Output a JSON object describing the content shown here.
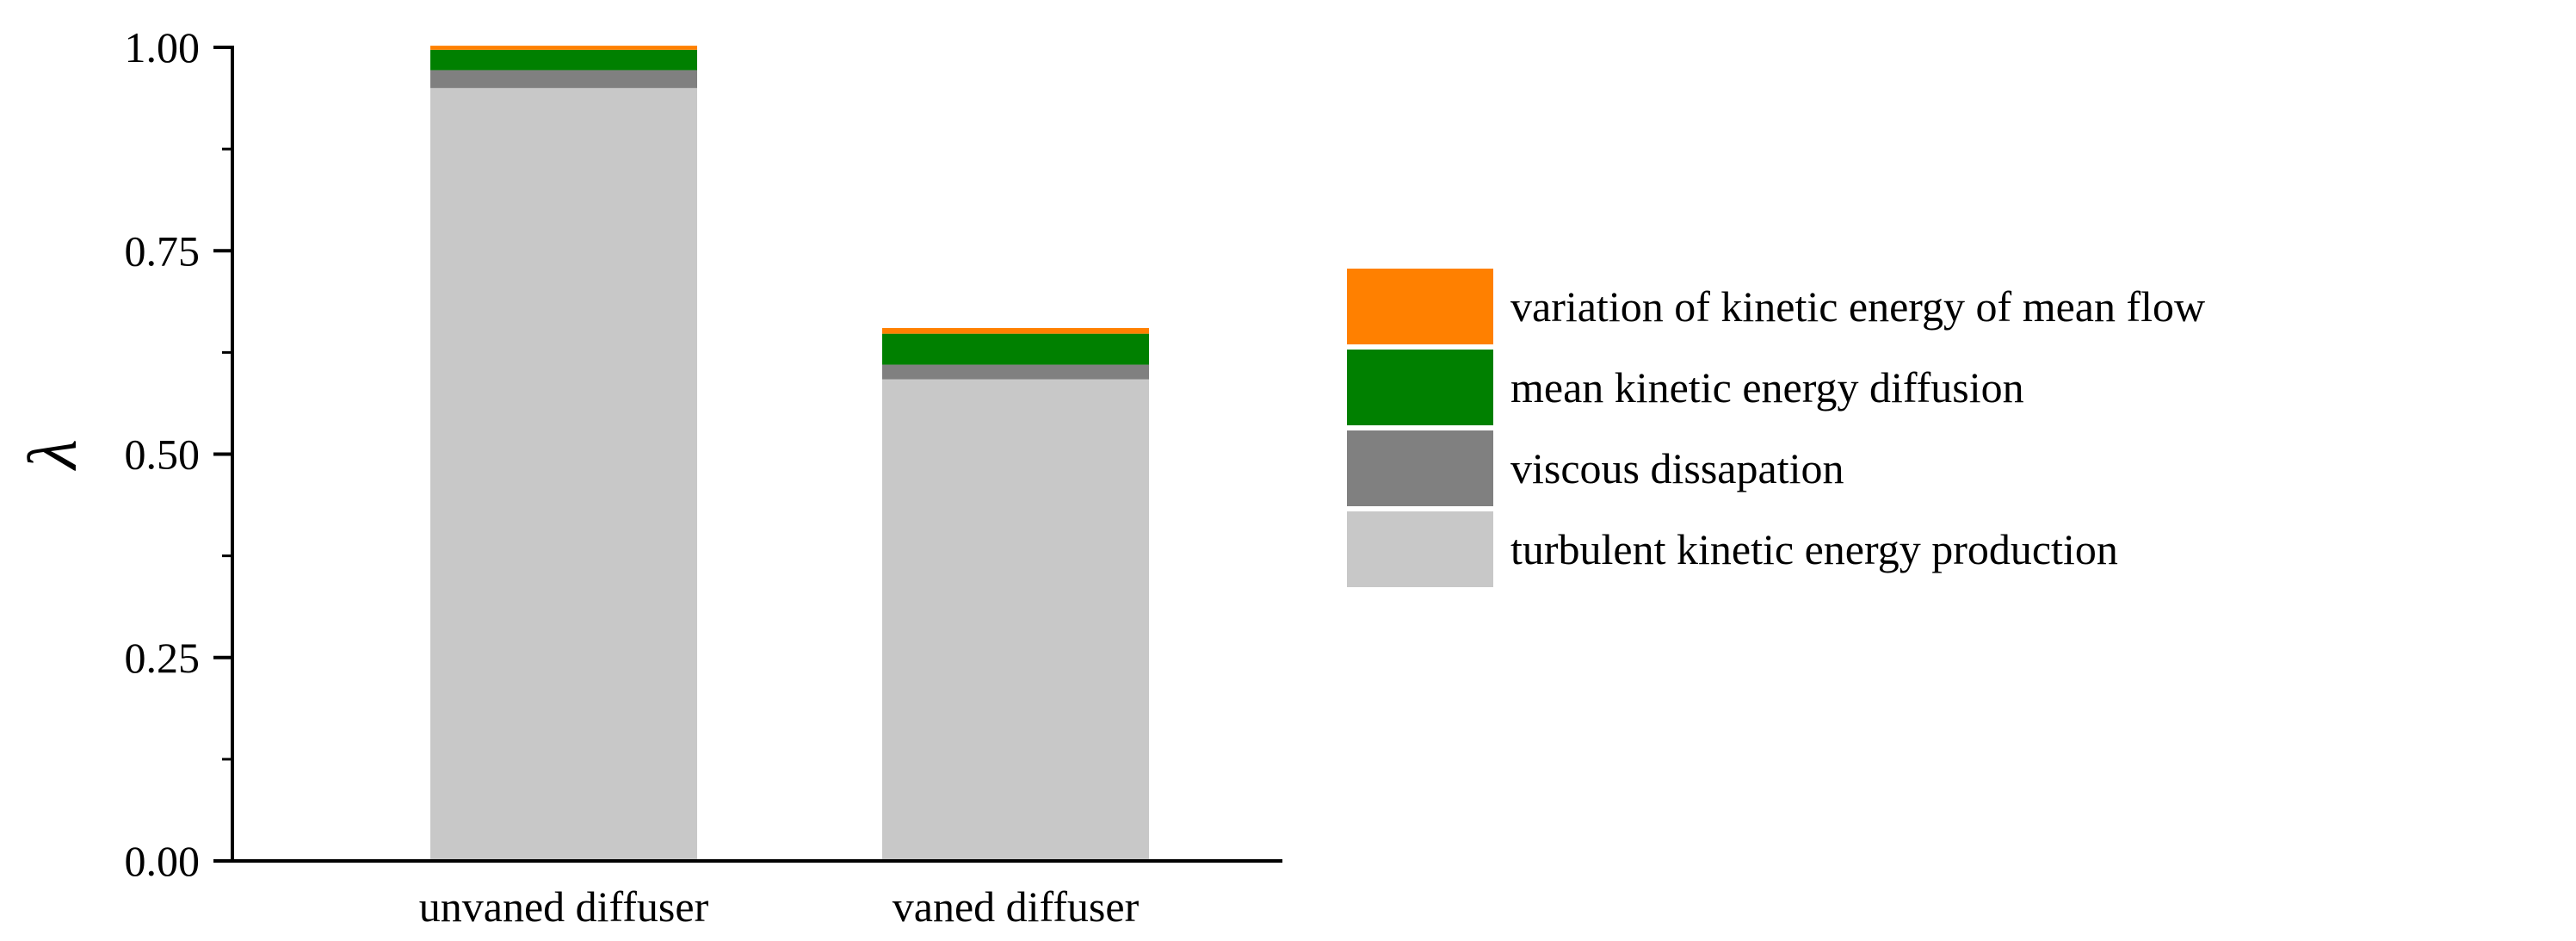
{
  "chart_data": {
    "type": "bar",
    "stacked": true,
    "categories": [
      "unvaned diffuser",
      "vaned diffuser"
    ],
    "series": [
      {
        "name": "turbulent kinetic energy production",
        "color": "#c8c8c8",
        "values": [
          0.95,
          0.592
        ]
      },
      {
        "name": "viscous dissapation",
        "color": "#808080",
        "values": [
          0.022,
          0.018
        ]
      },
      {
        "name": "mean kinetic energy diffusion",
        "color": "#008000",
        "values": [
          0.025,
          0.038
        ]
      },
      {
        "name": "variation of kinetic energy of mean flow",
        "color": "#ff8000",
        "values": [
          0.005,
          0.007
        ]
      }
    ],
    "xlabel": "",
    "ylabel": "λ",
    "ylim": [
      0,
      1.0
    ],
    "yticks": [
      "0.00",
      "0.25",
      "0.50",
      "0.75",
      "1.00"
    ],
    "ytick_values": [
      0,
      0.25,
      0.5,
      0.75,
      1.0
    ],
    "grid": false,
    "legend_position": "right"
  }
}
